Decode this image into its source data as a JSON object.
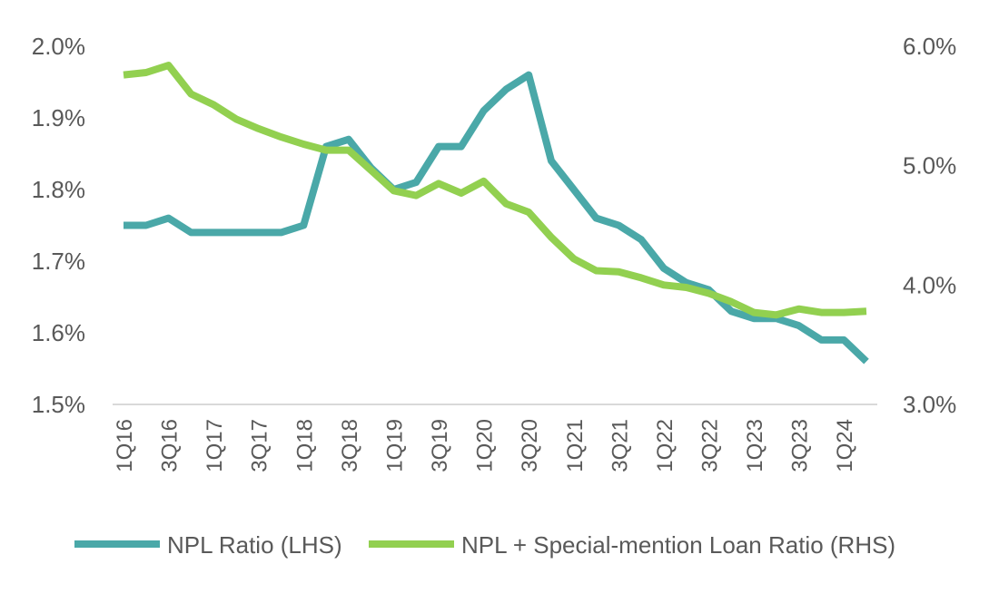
{
  "chart_data": {
    "type": "line",
    "title": "",
    "xlabel": "",
    "ylabel": "",
    "x_tick_labels": [
      "1Q16",
      "3Q16",
      "1Q17",
      "3Q17",
      "1Q18",
      "3Q18",
      "1Q19",
      "3Q19",
      "1Q20",
      "3Q20",
      "1Q21",
      "3Q21",
      "1Q22",
      "3Q22",
      "1Q23",
      "3Q23",
      "1Q24"
    ],
    "categories": [
      "1Q16",
      "2Q16",
      "3Q16",
      "4Q16",
      "1Q17",
      "2Q17",
      "3Q17",
      "4Q17",
      "1Q18",
      "2Q18",
      "3Q18",
      "4Q18",
      "1Q19",
      "2Q19",
      "3Q19",
      "4Q19",
      "1Q20",
      "2Q20",
      "3Q20",
      "4Q20",
      "1Q21",
      "2Q21",
      "3Q21",
      "4Q21",
      "1Q22",
      "2Q22",
      "3Q22",
      "4Q22",
      "1Q23",
      "2Q23",
      "3Q23",
      "4Q23",
      "1Q24",
      "2Q24"
    ],
    "left_axis": {
      "ylim": [
        1.5,
        2.0
      ],
      "ticks": [
        "1.5%",
        "1.6%",
        "1.7%",
        "1.8%",
        "1.9%",
        "2.0%"
      ],
      "tick_values": [
        1.5,
        1.6,
        1.7,
        1.8,
        1.9,
        2.0
      ]
    },
    "right_axis": {
      "ylim": [
        3.0,
        6.0
      ],
      "ticks": [
        "3.0%",
        "4.0%",
        "5.0%",
        "6.0%"
      ],
      "tick_values": [
        3.0,
        4.0,
        5.0,
        6.0
      ]
    },
    "series": [
      {
        "name": "NPL Ratio (LHS)",
        "axis": "left",
        "color": "#4aa8a8",
        "values": [
          1.75,
          1.75,
          1.76,
          1.74,
          1.74,
          1.74,
          1.74,
          1.74,
          1.75,
          1.86,
          1.87,
          1.83,
          1.8,
          1.81,
          1.86,
          1.86,
          1.91,
          1.94,
          1.96,
          1.84,
          1.8,
          1.76,
          1.75,
          1.73,
          1.69,
          1.67,
          1.66,
          1.63,
          1.62,
          1.62,
          1.61,
          1.59,
          1.59,
          1.56
        ]
      },
      {
        "name": "NPL + Special-mention Loan Ratio (RHS)",
        "axis": "right",
        "color": "#92d050",
        "values": [
          5.76,
          5.78,
          5.84,
          5.6,
          5.51,
          5.39,
          5.31,
          5.24,
          5.18,
          5.13,
          5.13,
          4.96,
          4.79,
          4.75,
          4.85,
          4.77,
          4.87,
          4.68,
          4.61,
          4.4,
          4.22,
          4.12,
          4.11,
          4.06,
          4.0,
          3.98,
          3.93,
          3.86,
          3.77,
          3.75,
          3.8,
          3.77,
          3.77,
          3.78
        ]
      }
    ],
    "grid": false,
    "legend_position": "bottom"
  },
  "legend": {
    "items": [
      {
        "label": "NPL Ratio (LHS)",
        "color": "#4aa8a8"
      },
      {
        "label": "NPL + Special-mention Loan Ratio (RHS)",
        "color": "#92d050"
      }
    ]
  },
  "colors": {
    "axis_line": "#d9d9d9",
    "text": "#595959"
  }
}
